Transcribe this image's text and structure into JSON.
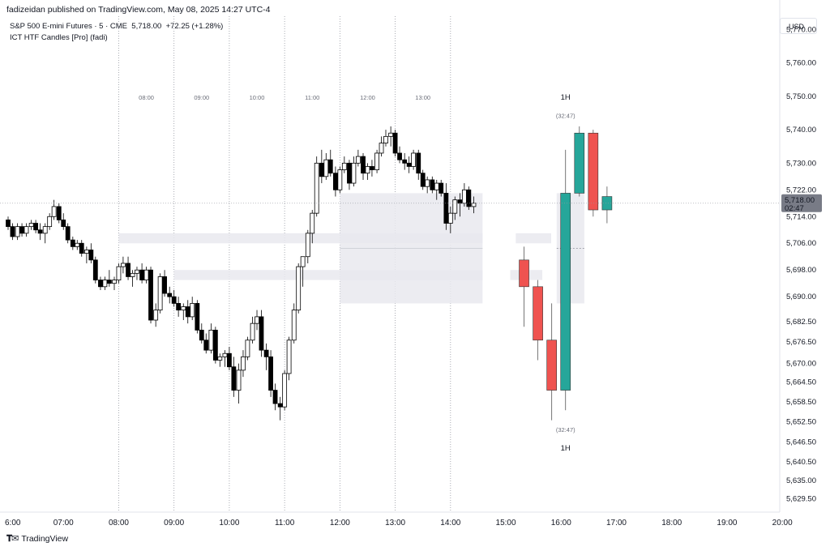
{
  "header": {
    "text": "fadizeidan published on TradingView.com, May 08, 2025 14:27 UTC-4"
  },
  "legend": {
    "symbol_line": "S&P 500 E-mini Futures · 5 · CME",
    "price": "5,718.00",
    "change": "+72.25 (+1.28%)",
    "indicator": "ICT HTF Candles [Pro] (fadi)"
  },
  "currency": "USD",
  "footer": {
    "brand": "TradingView"
  },
  "price_label": {
    "value": "5,718.00",
    "countdown": "02:47"
  },
  "colors": {
    "up": "#26a69a",
    "down": "#ef5350",
    "bull_body": "#ffffff",
    "bear_body": "#000000",
    "zone": "#e9e9ee",
    "grid": "#9598a1"
  },
  "chart_data": {
    "type": "candlestick",
    "ylim": [
      5625.5,
      5774
    ],
    "xlim": [
      6.0,
      20.1
    ],
    "y_ticks": [
      "5,629.50",
      "5,635.00",
      "5,640.50",
      "5,646.50",
      "5,652.50",
      "5,658.50",
      "5,664.50",
      "5,670.00",
      "5,676.50",
      "5,682.50",
      "5,690.00",
      "5,698.00",
      "5,706.00",
      "5,714.00",
      "5,722.00",
      "5,730.00",
      "5,740.00",
      "5,750.00",
      "5,760.00",
      "5,770.00"
    ],
    "y_tick_values": [
      5629.5,
      5635,
      5640.5,
      5646.5,
      5652.5,
      5658.5,
      5664.5,
      5670,
      5676.5,
      5682.5,
      5690,
      5698,
      5706,
      5714,
      5722,
      5730,
      5740,
      5750,
      5760,
      5770
    ],
    "x_ticks": [
      {
        "label": "6:00",
        "hour": 6.0
      },
      {
        "label": "07:00",
        "hour": 7.0
      },
      {
        "label": "08:00",
        "hour": 8.0
      },
      {
        "label": "09:00",
        "hour": 9.0
      },
      {
        "label": "10:00",
        "hour": 10.0
      },
      {
        "label": "11:00",
        "hour": 11.0
      },
      {
        "label": "12:00",
        "hour": 12.0
      },
      {
        "label": "13:00",
        "hour": 13.0
      },
      {
        "label": "14:00",
        "hour": 14.0
      },
      {
        "label": "15:00",
        "hour": 15.0
      },
      {
        "label": "16:00",
        "hour": 16.0
      },
      {
        "label": "17:00",
        "hour": 17.0
      },
      {
        "label": "18:00",
        "hour": 18.0
      },
      {
        "label": "19:00",
        "hour": 19.0
      },
      {
        "label": "20:00",
        "hour": 20.0
      }
    ],
    "session_dividers": [
      {
        "label": "08:00",
        "hour": 8.0
      },
      {
        "label": "09:00",
        "hour": 9.0
      },
      {
        "label": "10:00",
        "hour": 10.0
      },
      {
        "label": "11:00",
        "hour": 11.0
      },
      {
        "label": "12:00",
        "hour": 12.0
      },
      {
        "label": "13:00",
        "hour": 13.0
      },
      {
        "label": "14:00",
        "hour": 14.0
      }
    ],
    "current_price": 5718,
    "candles_5m": [
      {
        "t": 6.0,
        "o": 5713,
        "h": 5714,
        "l": 5710,
        "c": 5711
      },
      {
        "t": 6.08,
        "o": 5711,
        "h": 5712,
        "l": 5707,
        "c": 5708
      },
      {
        "t": 6.17,
        "o": 5708,
        "h": 5712,
        "l": 5707,
        "c": 5711
      },
      {
        "t": 6.25,
        "o": 5711,
        "h": 5712,
        "l": 5708,
        "c": 5709
      },
      {
        "t": 6.33,
        "o": 5709,
        "h": 5712,
        "l": 5708,
        "c": 5711
      },
      {
        "t": 6.42,
        "o": 5711,
        "h": 5713,
        "l": 5710,
        "c": 5712
      },
      {
        "t": 6.5,
        "o": 5712,
        "h": 5713,
        "l": 5709,
        "c": 5710
      },
      {
        "t": 6.58,
        "o": 5710,
        "h": 5712,
        "l": 5707,
        "c": 5709
      },
      {
        "t": 6.67,
        "o": 5709,
        "h": 5712,
        "l": 5706,
        "c": 5711
      },
      {
        "t": 6.75,
        "o": 5711,
        "h": 5715,
        "l": 5710,
        "c": 5714
      },
      {
        "t": 6.83,
        "o": 5714,
        "h": 5719,
        "l": 5713,
        "c": 5717
      },
      {
        "t": 6.92,
        "o": 5717,
        "h": 5718,
        "l": 5712,
        "c": 5713
      },
      {
        "t": 7.0,
        "o": 5713,
        "h": 5715,
        "l": 5710,
        "c": 5711
      },
      {
        "t": 7.08,
        "o": 5711,
        "h": 5712,
        "l": 5706,
        "c": 5707
      },
      {
        "t": 7.17,
        "o": 5707,
        "h": 5708,
        "l": 5704,
        "c": 5705
      },
      {
        "t": 7.25,
        "o": 5705,
        "h": 5707,
        "l": 5704,
        "c": 5706
      },
      {
        "t": 7.33,
        "o": 5706,
        "h": 5707,
        "l": 5702,
        "c": 5703
      },
      {
        "t": 7.42,
        "o": 5703,
        "h": 5705,
        "l": 5700,
        "c": 5704
      },
      {
        "t": 7.5,
        "o": 5704,
        "h": 5706,
        "l": 5700,
        "c": 5701
      },
      {
        "t": 7.58,
        "o": 5701,
        "h": 5702,
        "l": 5694,
        "c": 5695
      },
      {
        "t": 7.67,
        "o": 5695,
        "h": 5696,
        "l": 5692,
        "c": 5693
      },
      {
        "t": 7.75,
        "o": 5693,
        "h": 5696,
        "l": 5692,
        "c": 5695
      },
      {
        "t": 7.83,
        "o": 5695,
        "h": 5698,
        "l": 5693,
        "c": 5694
      },
      {
        "t": 7.92,
        "o": 5694,
        "h": 5696,
        "l": 5692,
        "c": 5695
      },
      {
        "t": 8.0,
        "o": 5695,
        "h": 5700,
        "l": 5694,
        "c": 5699
      },
      {
        "t": 8.08,
        "o": 5699,
        "h": 5702,
        "l": 5697,
        "c": 5700
      },
      {
        "t": 8.17,
        "o": 5700,
        "h": 5702,
        "l": 5695,
        "c": 5696
      },
      {
        "t": 8.25,
        "o": 5696,
        "h": 5698,
        "l": 5693,
        "c": 5697
      },
      {
        "t": 8.33,
        "o": 5697,
        "h": 5699,
        "l": 5695,
        "c": 5698
      },
      {
        "t": 8.42,
        "o": 5698,
        "h": 5700,
        "l": 5694,
        "c": 5695
      },
      {
        "t": 8.5,
        "o": 5695,
        "h": 5699,
        "l": 5694,
        "c": 5698
      },
      {
        "t": 8.58,
        "o": 5698,
        "h": 5699,
        "l": 5682,
        "c": 5683
      },
      {
        "t": 8.67,
        "o": 5683,
        "h": 5688,
        "l": 5681,
        "c": 5686
      },
      {
        "t": 8.75,
        "o": 5686,
        "h": 5697,
        "l": 5685,
        "c": 5696
      },
      {
        "t": 8.83,
        "o": 5696,
        "h": 5698,
        "l": 5690,
        "c": 5691
      },
      {
        "t": 8.92,
        "o": 5691,
        "h": 5693,
        "l": 5688,
        "c": 5690
      },
      {
        "t": 9.0,
        "o": 5690,
        "h": 5692,
        "l": 5687,
        "c": 5688
      },
      {
        "t": 9.08,
        "o": 5688,
        "h": 5690,
        "l": 5684,
        "c": 5686
      },
      {
        "t": 9.17,
        "o": 5686,
        "h": 5688,
        "l": 5683,
        "c": 5687
      },
      {
        "t": 9.25,
        "o": 5687,
        "h": 5689,
        "l": 5682,
        "c": 5684
      },
      {
        "t": 9.33,
        "o": 5684,
        "h": 5690,
        "l": 5683,
        "c": 5688
      },
      {
        "t": 9.42,
        "o": 5688,
        "h": 5689,
        "l": 5679,
        "c": 5680
      },
      {
        "t": 9.5,
        "o": 5680,
        "h": 5682,
        "l": 5676,
        "c": 5677
      },
      {
        "t": 9.58,
        "o": 5677,
        "h": 5679,
        "l": 5673,
        "c": 5674
      },
      {
        "t": 9.67,
        "o": 5674,
        "h": 5682,
        "l": 5673,
        "c": 5680
      },
      {
        "t": 9.75,
        "o": 5680,
        "h": 5681,
        "l": 5670,
        "c": 5671
      },
      {
        "t": 9.83,
        "o": 5671,
        "h": 5673,
        "l": 5669,
        "c": 5672
      },
      {
        "t": 9.92,
        "o": 5672,
        "h": 5674,
        "l": 5669,
        "c": 5673
      },
      {
        "t": 10.0,
        "o": 5673,
        "h": 5675,
        "l": 5668,
        "c": 5669
      },
      {
        "t": 10.08,
        "o": 5669,
        "h": 5672,
        "l": 5660,
        "c": 5662
      },
      {
        "t": 10.17,
        "o": 5662,
        "h": 5670,
        "l": 5658,
        "c": 5668
      },
      {
        "t": 10.25,
        "o": 5668,
        "h": 5674,
        "l": 5666,
        "c": 5672
      },
      {
        "t": 10.33,
        "o": 5672,
        "h": 5678,
        "l": 5671,
        "c": 5677
      },
      {
        "t": 10.42,
        "o": 5677,
        "h": 5684,
        "l": 5676,
        "c": 5682
      },
      {
        "t": 10.5,
        "o": 5682,
        "h": 5686,
        "l": 5680,
        "c": 5684
      },
      {
        "t": 10.58,
        "o": 5684,
        "h": 5686,
        "l": 5672,
        "c": 5674
      },
      {
        "t": 10.67,
        "o": 5674,
        "h": 5676,
        "l": 5668,
        "c": 5672
      },
      {
        "t": 10.75,
        "o": 5672,
        "h": 5674,
        "l": 5660,
        "c": 5662
      },
      {
        "t": 10.83,
        "o": 5662,
        "h": 5664,
        "l": 5656,
        "c": 5658
      },
      {
        "t": 10.92,
        "o": 5658,
        "h": 5660,
        "l": 5653,
        "c": 5657
      },
      {
        "t": 11.0,
        "o": 5657,
        "h": 5668,
        "l": 5656,
        "c": 5667
      },
      {
        "t": 11.08,
        "o": 5667,
        "h": 5678,
        "l": 5665,
        "c": 5677
      },
      {
        "t": 11.17,
        "o": 5677,
        "h": 5688,
        "l": 5676,
        "c": 5686
      },
      {
        "t": 11.25,
        "o": 5686,
        "h": 5700,
        "l": 5685,
        "c": 5699
      },
      {
        "t": 11.33,
        "o": 5699,
        "h": 5702,
        "l": 5693,
        "c": 5702
      },
      {
        "t": 11.42,
        "o": 5702,
        "h": 5710,
        "l": 5700,
        "c": 5709
      },
      {
        "t": 11.5,
        "o": 5709,
        "h": 5716,
        "l": 5706,
        "c": 5715
      },
      {
        "t": 11.58,
        "o": 5715,
        "h": 5732,
        "l": 5714,
        "c": 5730
      },
      {
        "t": 11.67,
        "o": 5730,
        "h": 5734,
        "l": 5724,
        "c": 5726
      },
      {
        "t": 11.75,
        "o": 5726,
        "h": 5733,
        "l": 5725,
        "c": 5731
      },
      {
        "t": 11.83,
        "o": 5731,
        "h": 5734,
        "l": 5726,
        "c": 5727
      },
      {
        "t": 11.92,
        "o": 5727,
        "h": 5729,
        "l": 5720,
        "c": 5722
      },
      {
        "t": 12.0,
        "o": 5722,
        "h": 5729,
        "l": 5721,
        "c": 5728
      },
      {
        "t": 12.08,
        "o": 5728,
        "h": 5732,
        "l": 5727,
        "c": 5730
      },
      {
        "t": 12.17,
        "o": 5730,
        "h": 5731,
        "l": 5722,
        "c": 5724
      },
      {
        "t": 12.25,
        "o": 5724,
        "h": 5732,
        "l": 5723,
        "c": 5730
      },
      {
        "t": 12.33,
        "o": 5730,
        "h": 5734,
        "l": 5729,
        "c": 5732
      },
      {
        "t": 12.42,
        "o": 5732,
        "h": 5733,
        "l": 5725,
        "c": 5727
      },
      {
        "t": 12.5,
        "o": 5727,
        "h": 5730,
        "l": 5725,
        "c": 5729
      },
      {
        "t": 12.58,
        "o": 5729,
        "h": 5731,
        "l": 5726,
        "c": 5728
      },
      {
        "t": 12.67,
        "o": 5728,
        "h": 5734,
        "l": 5727,
        "c": 5733
      },
      {
        "t": 12.75,
        "o": 5733,
        "h": 5738,
        "l": 5732,
        "c": 5736
      },
      {
        "t": 12.83,
        "o": 5736,
        "h": 5740,
        "l": 5735,
        "c": 5738
      },
      {
        "t": 12.92,
        "o": 5738,
        "h": 5741,
        "l": 5735,
        "c": 5739
      },
      {
        "t": 13.0,
        "o": 5739,
        "h": 5740,
        "l": 5732,
        "c": 5733
      },
      {
        "t": 13.08,
        "o": 5733,
        "h": 5735,
        "l": 5730,
        "c": 5731
      },
      {
        "t": 13.17,
        "o": 5731,
        "h": 5733,
        "l": 5728,
        "c": 5730
      },
      {
        "t": 13.25,
        "o": 5730,
        "h": 5732,
        "l": 5727,
        "c": 5729
      },
      {
        "t": 13.33,
        "o": 5729,
        "h": 5734,
        "l": 5728,
        "c": 5733
      },
      {
        "t": 13.42,
        "o": 5733,
        "h": 5734,
        "l": 5725,
        "c": 5727
      },
      {
        "t": 13.5,
        "o": 5727,
        "h": 5728,
        "l": 5722,
        "c": 5723
      },
      {
        "t": 13.58,
        "o": 5723,
        "h": 5726,
        "l": 5721,
        "c": 5725
      },
      {
        "t": 13.67,
        "o": 5725,
        "h": 5726,
        "l": 5721,
        "c": 5722
      },
      {
        "t": 13.75,
        "o": 5722,
        "h": 5725,
        "l": 5719,
        "c": 5724
      },
      {
        "t": 13.83,
        "o": 5724,
        "h": 5725,
        "l": 5720,
        "c": 5721
      },
      {
        "t": 13.92,
        "o": 5721,
        "h": 5724,
        "l": 5710,
        "c": 5712
      },
      {
        "t": 14.0,
        "o": 5712,
        "h": 5717,
        "l": 5709,
        "c": 5715
      },
      {
        "t": 14.08,
        "o": 5715,
        "h": 5720,
        "l": 5713,
        "c": 5719
      },
      {
        "t": 14.17,
        "o": 5719,
        "h": 5721,
        "l": 5714,
        "c": 5718
      },
      {
        "t": 14.25,
        "o": 5718,
        "h": 5724,
        "l": 5717,
        "c": 5722
      },
      {
        "t": 14.33,
        "o": 5722,
        "h": 5723,
        "l": 5716,
        "c": 5717
      },
      {
        "t": 14.42,
        "o": 5717,
        "h": 5720,
        "l": 5715,
        "c": 5718
      }
    ],
    "zones": [
      {
        "x0": 8.0,
        "x1": 14.58,
        "y0": 5706,
        "y1": 5709
      },
      {
        "x0": 9.0,
        "x1": 14.58,
        "y0": 5695,
        "y1": 5698
      },
      {
        "x0": 12.0,
        "x1": 14.58,
        "y0": 5688,
        "y1": 5721
      },
      {
        "x0": 15.18,
        "x1": 15.82,
        "y0": 5706,
        "y1": 5709
      },
      {
        "x0": 15.08,
        "x1": 15.66,
        "y0": 5695,
        "y1": 5698
      },
      {
        "x0": 15.92,
        "x1": 16.42,
        "y0": 5688,
        "y1": 5721
      }
    ],
    "htf_timeframe": "1H",
    "htf_countdown": "(32:47)",
    "htf_candles": [
      {
        "x": 15.33,
        "o": 5701,
        "h": 5705,
        "l": 5681,
        "c": 5693,
        "dir": "down"
      },
      {
        "x": 15.58,
        "o": 5693,
        "h": 5695,
        "l": 5671,
        "c": 5677,
        "dir": "down"
      },
      {
        "x": 15.83,
        "o": 5677,
        "h": 5688,
        "l": 5653,
        "c": 5662,
        "dir": "down"
      },
      {
        "x": 16.08,
        "o": 5662,
        "h": 5734,
        "l": 5656,
        "c": 5721,
        "dir": "up"
      },
      {
        "x": 16.33,
        "o": 5721,
        "h": 5741,
        "l": 5720,
        "c": 5739,
        "dir": "up"
      },
      {
        "x": 16.58,
        "o": 5739,
        "h": 5740,
        "l": 5714,
        "c": 5716,
        "dir": "down"
      },
      {
        "x": 16.83,
        "o": 5716,
        "h": 5723,
        "l": 5712,
        "c": 5720,
        "dir": "up"
      }
    ]
  }
}
